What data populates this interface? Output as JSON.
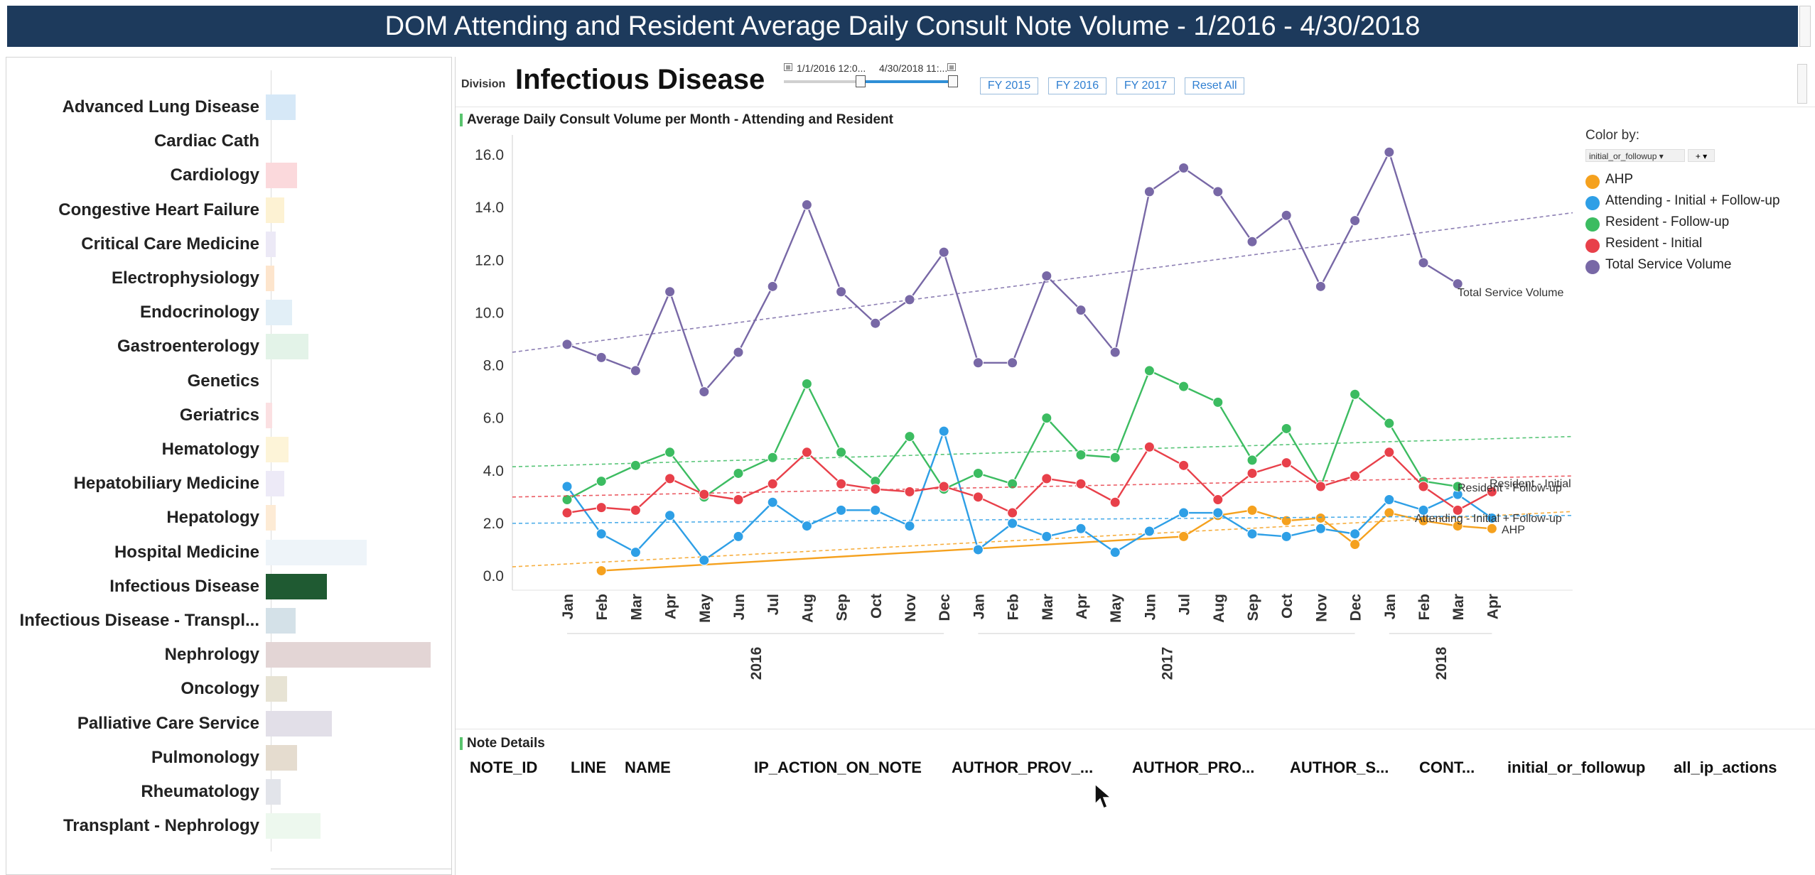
{
  "header": {
    "title": "DOM Attending and Resident Average Daily Consult Note Volume - 1/2016 - 4/30/2018"
  },
  "divisions": [
    {
      "name": "Advanced Lung Disease",
      "value": 0.18,
      "color": "#d6e8f7"
    },
    {
      "name": "Cardiac Cath",
      "value": 0.0,
      "color": "#e8e8e8"
    },
    {
      "name": "Cardiology",
      "value": 0.19,
      "color": "#fbd9dc"
    },
    {
      "name": "Congestive Heart Failure",
      "value": 0.11,
      "color": "#fdf2d3"
    },
    {
      "name": "Critical Care Medicine",
      "value": 0.06,
      "color": "#ece9f6"
    },
    {
      "name": "Electrophysiology",
      "value": 0.05,
      "color": "#fde5cd"
    },
    {
      "name": "Endocrinology",
      "value": 0.16,
      "color": "#e2eff7"
    },
    {
      "name": "Gastroenterology",
      "value": 0.26,
      "color": "#e3f3e8"
    },
    {
      "name": "Genetics",
      "value": 0.0,
      "color": "#e8e8e8"
    },
    {
      "name": "Geriatrics",
      "value": 0.04,
      "color": "#fbe0e2"
    },
    {
      "name": "Hematology",
      "value": 0.14,
      "color": "#fdf4d8"
    },
    {
      "name": "Hepatobiliary Medicine",
      "value": 0.11,
      "color": "#edeaf7"
    },
    {
      "name": "Hepatology",
      "value": 0.06,
      "color": "#fdebd5"
    },
    {
      "name": "Hospital Medicine",
      "value": 0.61,
      "color": "#eef4f9"
    },
    {
      "name": "Infectious Disease",
      "value": 0.37,
      "color": "#1f5a32"
    },
    {
      "name": "Infectious Disease - Transpl...",
      "value": 0.18,
      "color": "#d4e1e8"
    },
    {
      "name": "Nephrology",
      "value": 1.0,
      "color": "#e3d5d5"
    },
    {
      "name": "Oncology",
      "value": 0.13,
      "color": "#e7e3d4"
    },
    {
      "name": "Palliative Care Service",
      "value": 0.4,
      "color": "#e2dfe8"
    },
    {
      "name": "Pulmonology",
      "value": 0.19,
      "color": "#e5dccf"
    },
    {
      "name": "Rheumatology",
      "value": 0.09,
      "color": "#e2e4ea"
    },
    {
      "name": "Transplant - Nephrology",
      "value": 0.33,
      "color": "#edf8ee"
    }
  ],
  "controls": {
    "division_small": "Division",
    "division_name": "Infectious Disease",
    "date_start": "1/1/2016 12:0...",
    "date_end": "4/30/2018 11:...",
    "buttons": [
      "FY 2015",
      "FY 2016",
      "FY 2017",
      "Reset All"
    ]
  },
  "chart_title": "Average Daily Consult Volume per Month - Attending and Resident",
  "legend": {
    "title": "Color by:",
    "select_value": "initial_or_followup",
    "plus_label": "+"
  },
  "chart_data": {
    "type": "line",
    "months": [
      "Jan",
      "Feb",
      "Mar",
      "Apr",
      "May",
      "Jun",
      "Jul",
      "Aug",
      "Sep",
      "Oct",
      "Nov",
      "Dec",
      "Jan",
      "Feb",
      "Mar",
      "Apr",
      "May",
      "Jun",
      "Jul",
      "Aug",
      "Sep",
      "Oct",
      "Nov",
      "Dec",
      "Jan",
      "Feb",
      "Mar",
      "Apr"
    ],
    "years": [
      {
        "label": "2016",
        "from": 0,
        "to": 11
      },
      {
        "label": "2017",
        "from": 12,
        "to": 23
      },
      {
        "label": "2018",
        "from": 24,
        "to": 27
      }
    ],
    "ylim": [
      0,
      16
    ],
    "yticks": [
      "0.0",
      "2.0",
      "4.0",
      "6.0",
      "8.0",
      "10.0",
      "12.0",
      "14.0",
      "16.0"
    ],
    "series": [
      {
        "name": "AHP",
        "color": "#f5a11e",
        "values": [
          null,
          0.2,
          null,
          null,
          null,
          null,
          null,
          null,
          null,
          null,
          null,
          null,
          null,
          null,
          null,
          null,
          null,
          null,
          1.5,
          2.3,
          2.5,
          2.1,
          2.2,
          1.2,
          2.4,
          2.1,
          1.9,
          1.8
        ],
        "trend": [
          0.35,
          2.45
        ],
        "label": "AHP"
      },
      {
        "name": "Attending - Initial + Follow-up",
        "color": "#2e9fe6",
        "values": [
          3.4,
          1.6,
          0.9,
          2.3,
          0.6,
          1.5,
          2.8,
          1.9,
          2.5,
          2.5,
          1.9,
          5.5,
          1.0,
          2.0,
          1.5,
          1.8,
          0.9,
          1.7,
          2.4,
          2.4,
          1.6,
          1.5,
          1.8,
          1.6,
          2.9,
          2.5,
          3.1,
          2.2
        ],
        "trend": [
          2.0,
          2.3
        ],
        "label": "Attending - Initial + Follow-up"
      },
      {
        "name": "Resident - Follow-up",
        "color": "#3cbc61",
        "values": [
          2.9,
          3.6,
          4.2,
          4.7,
          3.0,
          3.9,
          4.5,
          7.3,
          4.7,
          3.6,
          5.3,
          3.3,
          3.9,
          3.5,
          6.0,
          4.6,
          4.5,
          7.8,
          7.2,
          6.6,
          4.4,
          5.6,
          3.4,
          6.9,
          5.8,
          3.6,
          3.4,
          null
        ],
        "trend": [
          4.15,
          5.3
        ],
        "label": "Resident - Follow-up"
      },
      {
        "name": "Resident - Initial",
        "color": "#e8404a",
        "values": [
          2.4,
          2.6,
          2.5,
          3.7,
          3.1,
          2.9,
          3.5,
          4.7,
          3.5,
          3.3,
          3.2,
          3.4,
          3.0,
          2.4,
          3.7,
          3.5,
          2.8,
          4.9,
          4.2,
          2.9,
          3.9,
          4.3,
          3.4,
          3.8,
          4.7,
          3.4,
          2.5,
          3.2
        ],
        "trend": [
          3.0,
          3.8
        ],
        "label": "Resident - Initial"
      },
      {
        "name": "Total Service Volume",
        "color": "#7868a6",
        "values": [
          8.8,
          8.3,
          7.8,
          10.8,
          7.0,
          8.5,
          11.0,
          14.1,
          10.8,
          9.6,
          10.5,
          12.3,
          8.1,
          8.1,
          11.4,
          10.1,
          8.5,
          14.6,
          15.5,
          14.6,
          12.7,
          13.7,
          11.0,
          13.5,
          16.1,
          11.9,
          11.1,
          null
        ],
        "trend": [
          8.5,
          13.8
        ],
        "label": "Total Service Volume"
      }
    ]
  },
  "note_details": {
    "title": "Note Details",
    "columns": [
      "NOTE_ID",
      "LINE",
      "NAME",
      "IP_ACTION_ON_NOTE",
      "AUTHOR_PROV_...",
      "AUTHOR_PRO...",
      "AUTHOR_S...",
      "CONT...",
      "initial_or_followup",
      "all_ip_actions"
    ]
  }
}
